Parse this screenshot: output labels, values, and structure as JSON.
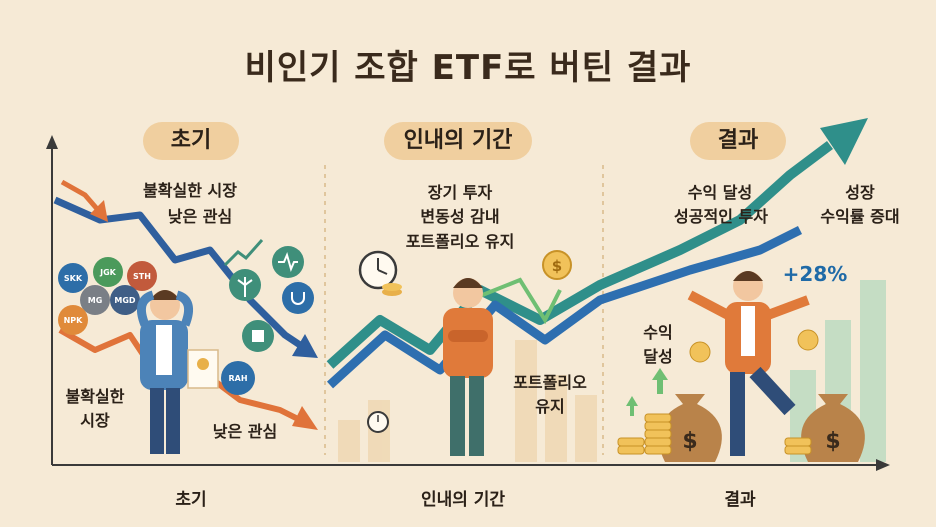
{
  "title": "비인기 조합 ETF로 버틴 결과",
  "sections": {
    "early": {
      "header": "초기",
      "label_top_1": "불확실한 시장",
      "label_top_2": "낮은 관심",
      "label_bottom_left_1": "불확실한",
      "label_bottom_left_2": "시장",
      "label_bottom_right": "낮은 관심",
      "axis_label": "초기",
      "badges": [
        "SKK",
        "JGK",
        "STH",
        "MG",
        "MGD",
        "NPK",
        "RAH"
      ]
    },
    "patience": {
      "header": "인내의 기간",
      "label_top_1": "장기 투자",
      "label_top_2": "변동성 감내",
      "label_top_3": "포트폴리오 유지",
      "label_bottom_1": "포트폴리오",
      "label_bottom_2": "유지",
      "axis_label": "인내의 기간"
    },
    "result": {
      "header": "결과",
      "label_top_1": "수익 달성",
      "label_top_2": "성공적인 투자",
      "label_right_1": "성장",
      "label_right_2": "수익률 증대",
      "label_left_1": "수익",
      "label_left_2": "달성",
      "percent": "+28%",
      "axis_label": "결과"
    }
  },
  "colors": {
    "background": "#f6ead6",
    "down_arrow_blue": "#2f5f9e",
    "down_arrow_orange": "#e0733a",
    "up_arrow_teal": "#2f8f8a",
    "up_arrow_blue": "#2e6fb0",
    "pill": "#f0cf9f"
  }
}
